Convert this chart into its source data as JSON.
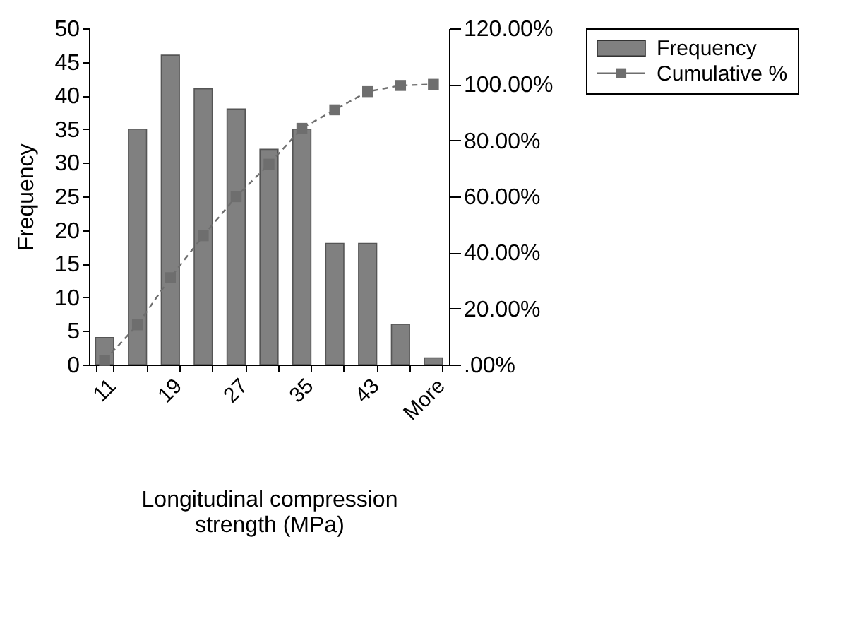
{
  "chart_data": {
    "type": "bar",
    "xlabel": "Longitudinal compression strength (MPa)",
    "ylabel": "Frequency",
    "categories": [
      "11",
      null,
      "19",
      null,
      "27",
      null,
      "35",
      null,
      "43",
      null,
      "More"
    ],
    "series": [
      {
        "name": "Frequency",
        "color": "#808080",
        "values": [
          4,
          35,
          46,
          41,
          38,
          32,
          35,
          18,
          18,
          6,
          1
        ]
      },
      {
        "name": "Cumulative %",
        "type": "line",
        "axis": "y2",
        "color": "#6e6e6e",
        "marker": "square",
        "line_style": "dashed",
        "values": [
          1.5,
          14.2,
          31.0,
          46.0,
          59.9,
          71.5,
          84.3,
          90.9,
          97.4,
          99.6,
          100
        ]
      }
    ],
    "ylim": [
      0,
      50
    ],
    "yticks": [
      0,
      5,
      10,
      15,
      20,
      25,
      30,
      35,
      40,
      45,
      50
    ],
    "y2lim": [
      0,
      120
    ],
    "y2ticks": [
      {
        "value": 0,
        "label": ".00%"
      },
      {
        "value": 20,
        "label": "20.00%"
      },
      {
        "value": 40,
        "label": "40.00%"
      },
      {
        "value": 60,
        "label": "60.00%"
      },
      {
        "value": 80,
        "label": "80.00%"
      },
      {
        "value": 100,
        "label": "100.00%"
      },
      {
        "value": 120,
        "label": "120.00%"
      }
    ],
    "grid": false,
    "legend": "right"
  }
}
